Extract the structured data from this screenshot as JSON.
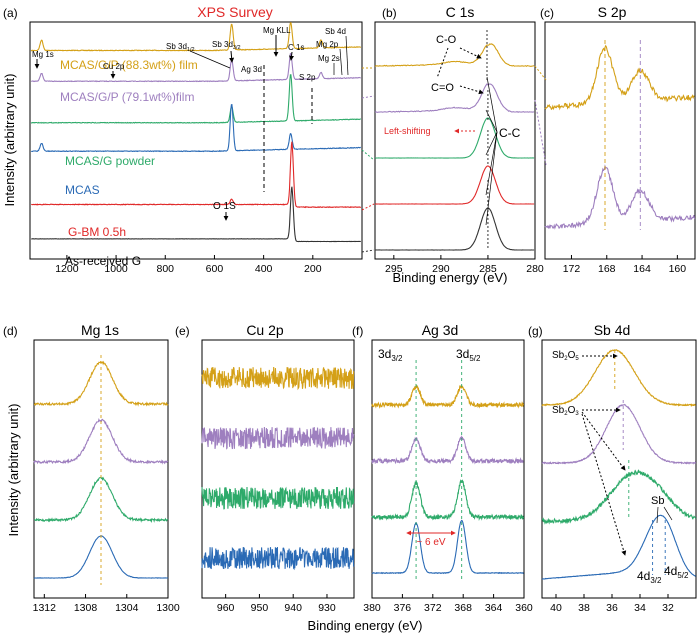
{
  "chart_data": [
    {
      "type": "line",
      "panel": "(a)",
      "title": "XPS Survey",
      "xlabel": "Binding energy (eV)",
      "ylabel": "Intensity (arbitrary unit)",
      "xlim": [
        1350,
        0
      ],
      "xticks": [
        1200,
        1000,
        800,
        600,
        400,
        200
      ],
      "series": [
        {
          "name": "MCAS/G/P (88.3wt%) film",
          "color": "#d4a017",
          "offset": 0.88,
          "peaks": [
            [
              1303,
              0.02
            ],
            [
              530,
              0.05
            ],
            [
              290,
              0.05
            ],
            [
              167,
              0.015
            ]
          ]
        },
        {
          "name": "MCAS/G/P (79.1wt%)film",
          "color": "#9e7fbf",
          "offset": 0.75,
          "peaks": [
            [
              1303,
              0.015
            ],
            [
              530,
              0.04
            ],
            [
              290,
              0.05
            ],
            [
              167,
              0.012
            ]
          ]
        },
        {
          "name": "MCAS/G powder",
          "color": "#2eaa6a",
          "offset": 0.575,
          "peaks": [
            [
              530,
              0.03
            ],
            [
              290,
              0.09
            ]
          ]
        },
        {
          "name": "MCAS",
          "color": "#2a6ab5",
          "offset": 0.455,
          "peaks": [
            [
              1303,
              0.015
            ],
            [
              530,
              0.09
            ],
            [
              290,
              0.03
            ]
          ]
        },
        {
          "name": "G-BM 0.5h",
          "color": "#e02828",
          "offset": 0.23,
          "peaks": [
            [
              530,
              0.01
            ],
            [
              285,
              0.12
            ]
          ]
        },
        {
          "name": "As-received G",
          "color": "#333333",
          "offset": 0.085,
          "peaks": [
            [
              285,
              0.1
            ]
          ]
        }
      ],
      "annotations": [
        "Mg 1s",
        "Cu 2p",
        "Sb 3d",
        "1/2",
        "Sb 3d",
        "3/2",
        "Ag 3d",
        "Mg KLL",
        "C 1s",
        "S 2p",
        "Mg 2s",
        "Mg 2p",
        "Sb 4d",
        "O 1S"
      ]
    },
    {
      "type": "line",
      "panel": "(b)",
      "title": "C 1s",
      "xlim": [
        297,
        280
      ],
      "xticks": [
        295,
        290,
        285,
        280
      ],
      "series_colors": [
        "#d4a017",
        "#9e7fbf",
        "#2eaa6a",
        "#e02828",
        "#333333"
      ],
      "peak_center": 285,
      "annotations": [
        "C-O",
        "C=O",
        "Left-shifting",
        "C-C"
      ]
    },
    {
      "type": "line",
      "panel": "(c)",
      "title": "S 2p",
      "xlim": [
        175,
        158
      ],
      "xticks": [
        172,
        168,
        164,
        160
      ],
      "series_colors": [
        "#d4a017",
        "#9e7fbf"
      ],
      "peaks": [
        168.2,
        164.2
      ]
    },
    {
      "type": "line",
      "panel": "(d)",
      "title": "Mg 1s",
      "xlim": [
        1313,
        1300
      ],
      "xticks": [
        1312,
        1308,
        1304,
        1300
      ],
      "series_colors": [
        "#d4a017",
        "#9e7fbf",
        "#2eaa6a",
        "#2a6ab5"
      ],
      "peak_center": 1306.5
    },
    {
      "type": "line",
      "panel": "(e)",
      "title": "Cu 2p",
      "xlim": [
        967,
        922
      ],
      "xticks": [
        960,
        950,
        940,
        930
      ],
      "series_colors": [
        "#d4a017",
        "#9e7fbf",
        "#2eaa6a",
        "#2a6ab5"
      ]
    },
    {
      "type": "line",
      "panel": "(f)",
      "title": "Ag 3d",
      "xlim": [
        380,
        360
      ],
      "xticks": [
        380,
        376,
        372,
        368,
        364,
        360
      ],
      "series_colors": [
        "#d4a017",
        "#9e7fbf",
        "#2eaa6a",
        "#2a6ab5"
      ],
      "peaks": [
        374.2,
        368.2
      ],
      "annotations": [
        "3d",
        "3/2",
        "3d",
        "5/2",
        "~ 6 eV"
      ]
    },
    {
      "type": "line",
      "panel": "(g)",
      "title": "Sb 4d",
      "xlim": [
        41,
        30
      ],
      "xticks": [
        40,
        38,
        36,
        34,
        32
      ],
      "series_colors": [
        "#d4a017",
        "#9e7fbf",
        "#2eaa6a",
        "#2a6ab5"
      ],
      "annotations": [
        "Sb",
        "2",
        "O",
        "5",
        "Sb",
        "2",
        "O",
        "3",
        "Sb",
        "4d",
        "3/2",
        "4d",
        "5/2"
      ]
    }
  ],
  "shared": {
    "xlabel": "Binding energy (eV)",
    "ylabel": "Intensity (arbitrary unit)"
  }
}
